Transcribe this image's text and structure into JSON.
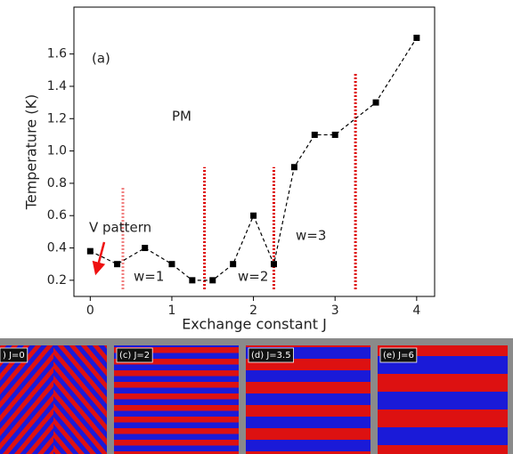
{
  "chart_data": {
    "type": "line",
    "x_label": "Exchange constant J",
    "y_label": "Temperature (K)",
    "x": [
      0,
      0.33,
      0.67,
      1,
      1.25,
      1.5,
      1.75,
      2,
      2.25,
      2.5,
      2.75,
      3,
      3.5,
      4
    ],
    "series": [
      {
        "color": "#000000",
        "values": [
          0.38,
          0.3,
          0.4,
          0.3,
          0.2,
          0.2,
          0.3,
          0.6,
          0.3,
          0.9,
          1.1,
          1.1,
          1.3,
          1.7
        ]
      }
    ],
    "xlim": [
      -0.2,
      4.22
    ],
    "ylim": [
      0.1,
      1.89
    ],
    "xticks": [
      0,
      1,
      2,
      3,
      4
    ],
    "yticks": [
      0.2,
      0.4,
      0.6,
      0.8,
      {
        "value": 1,
        "label": "1.0"
      },
      1.2,
      1.4,
      1.6
    ],
    "boundaries": [
      {
        "x": 0.4,
        "top": 0.78,
        "color": "#f08080"
      },
      {
        "x": 1.4,
        "top": 0.9,
        "color": "#dd0000"
      },
      {
        "x": 2.25,
        "top": 0.9,
        "color": "#dd0000"
      },
      {
        "x": 3.25,
        "top": 1.48,
        "color": "#dd0000"
      }
    ],
    "annotations": [
      "(a)",
      "PM",
      "V pattern",
      "w=1",
      "w=2",
      "w=3"
    ]
  },
  "panels": [
    {
      "label": ") J=0"
    },
    {
      "label": "(c) J=2"
    },
    {
      "label": "(d) J=3.5"
    },
    {
      "label": "(e) J=6"
    }
  ]
}
